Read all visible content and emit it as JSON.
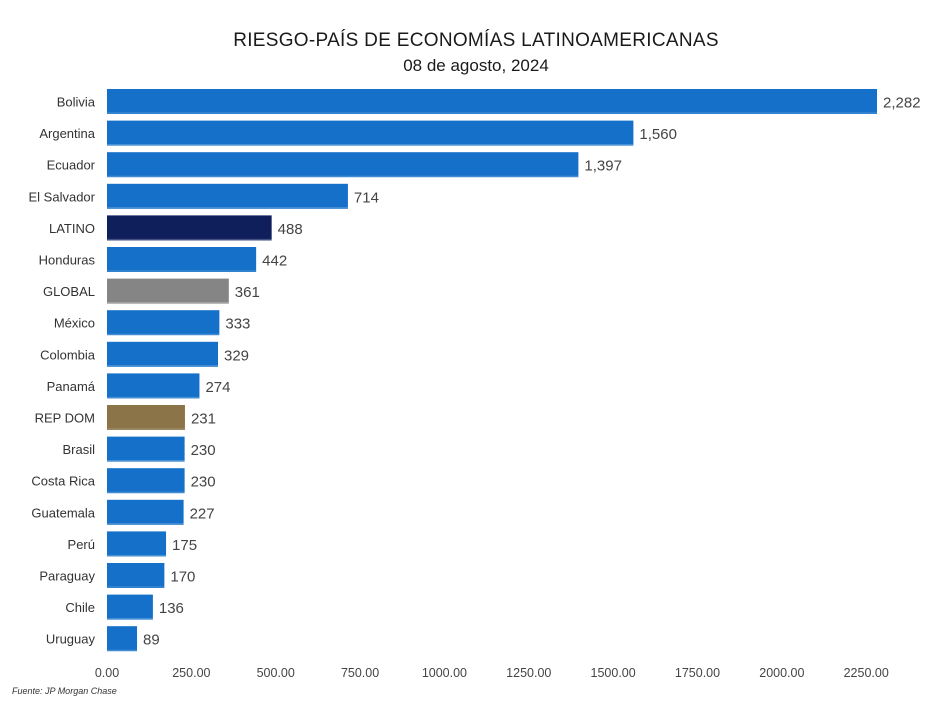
{
  "chart_data": {
    "type": "bar",
    "orientation": "horizontal",
    "title": "RIESGO-PAÍS DE ECONOMÍAS LATINOAMERICANAS",
    "subtitle": "08 de agosto, 2024",
    "categories": [
      "Bolivia",
      "Argentina",
      "Ecuador",
      "El Salvador",
      "LATINO",
      "Honduras",
      "GLOBAL",
      "México",
      "Colombia",
      "Panamá",
      "REP DOM",
      "Brasil",
      "Costa Rica",
      "Guatemala",
      "Perú",
      "Paraguay",
      "Chile",
      "Uruguay"
    ],
    "values": [
      2282,
      1560,
      1397,
      714,
      488,
      442,
      361,
      333,
      329,
      274,
      231,
      230,
      230,
      227,
      175,
      170,
      136,
      89
    ],
    "value_labels": [
      "2,282",
      "1,560",
      "1,397",
      "714",
      "488",
      "442",
      "361",
      "333",
      "329",
      "274",
      "231",
      "230",
      "230",
      "227",
      "175",
      "170",
      "136",
      "89"
    ],
    "bar_colors": [
      "#1470c8",
      "#1470c8",
      "#1470c8",
      "#1470c8",
      "#0f1f5c",
      "#1470c8",
      "#858585",
      "#1470c8",
      "#1470c8",
      "#1470c8",
      "#8a7448",
      "#1470c8",
      "#1470c8",
      "#1470c8",
      "#1470c8",
      "#1470c8",
      "#1470c8",
      "#1470c8"
    ],
    "xlim": [
      0,
      2250
    ],
    "xticks": [
      0,
      250,
      500,
      750,
      1000,
      1250,
      1500,
      1750,
      2000,
      2250
    ],
    "xtick_labels": [
      "0.00",
      "250.00",
      "500.00",
      "750.00",
      "1000.00",
      "1250.00",
      "1500.00",
      "1750.00",
      "2000.00",
      "2250.00"
    ],
    "xlabel": "",
    "ylabel": "",
    "grid": false,
    "legend": "none"
  },
  "source": "Fuente: JP Morgan Chase"
}
